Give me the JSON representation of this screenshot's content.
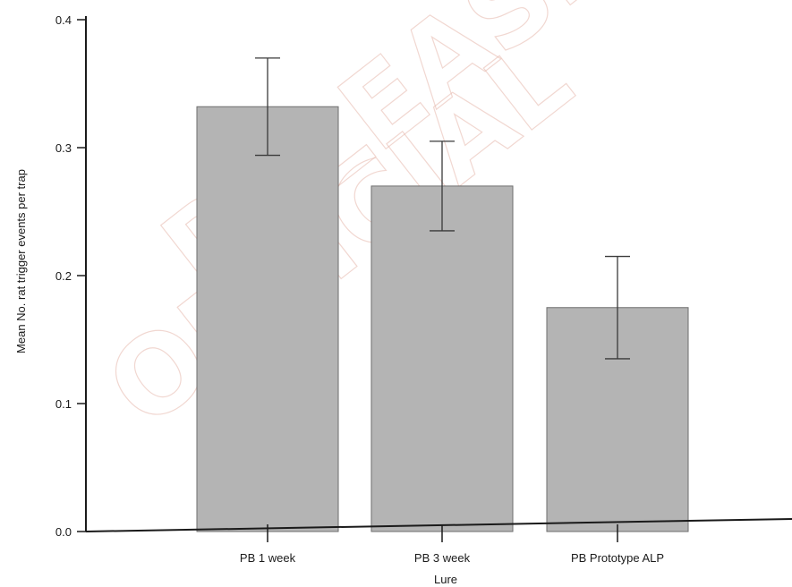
{
  "chart_data": {
    "type": "bar",
    "categories": [
      "PB 1 week",
      "PB 3 week",
      "PB Prototype ALP"
    ],
    "values": [
      0.332,
      0.27,
      0.175
    ],
    "error": [
      0.038,
      0.035,
      0.04
    ],
    "xlabel": "Lure",
    "ylabel": "Mean No. rat trigger events per trap",
    "ylim": [
      0,
      0.4
    ],
    "yticks": [
      "0.0",
      "0.1",
      "0.2",
      "0.3",
      "0.4"
    ],
    "bar_color": "#b4b4b4",
    "grid": false
  }
}
